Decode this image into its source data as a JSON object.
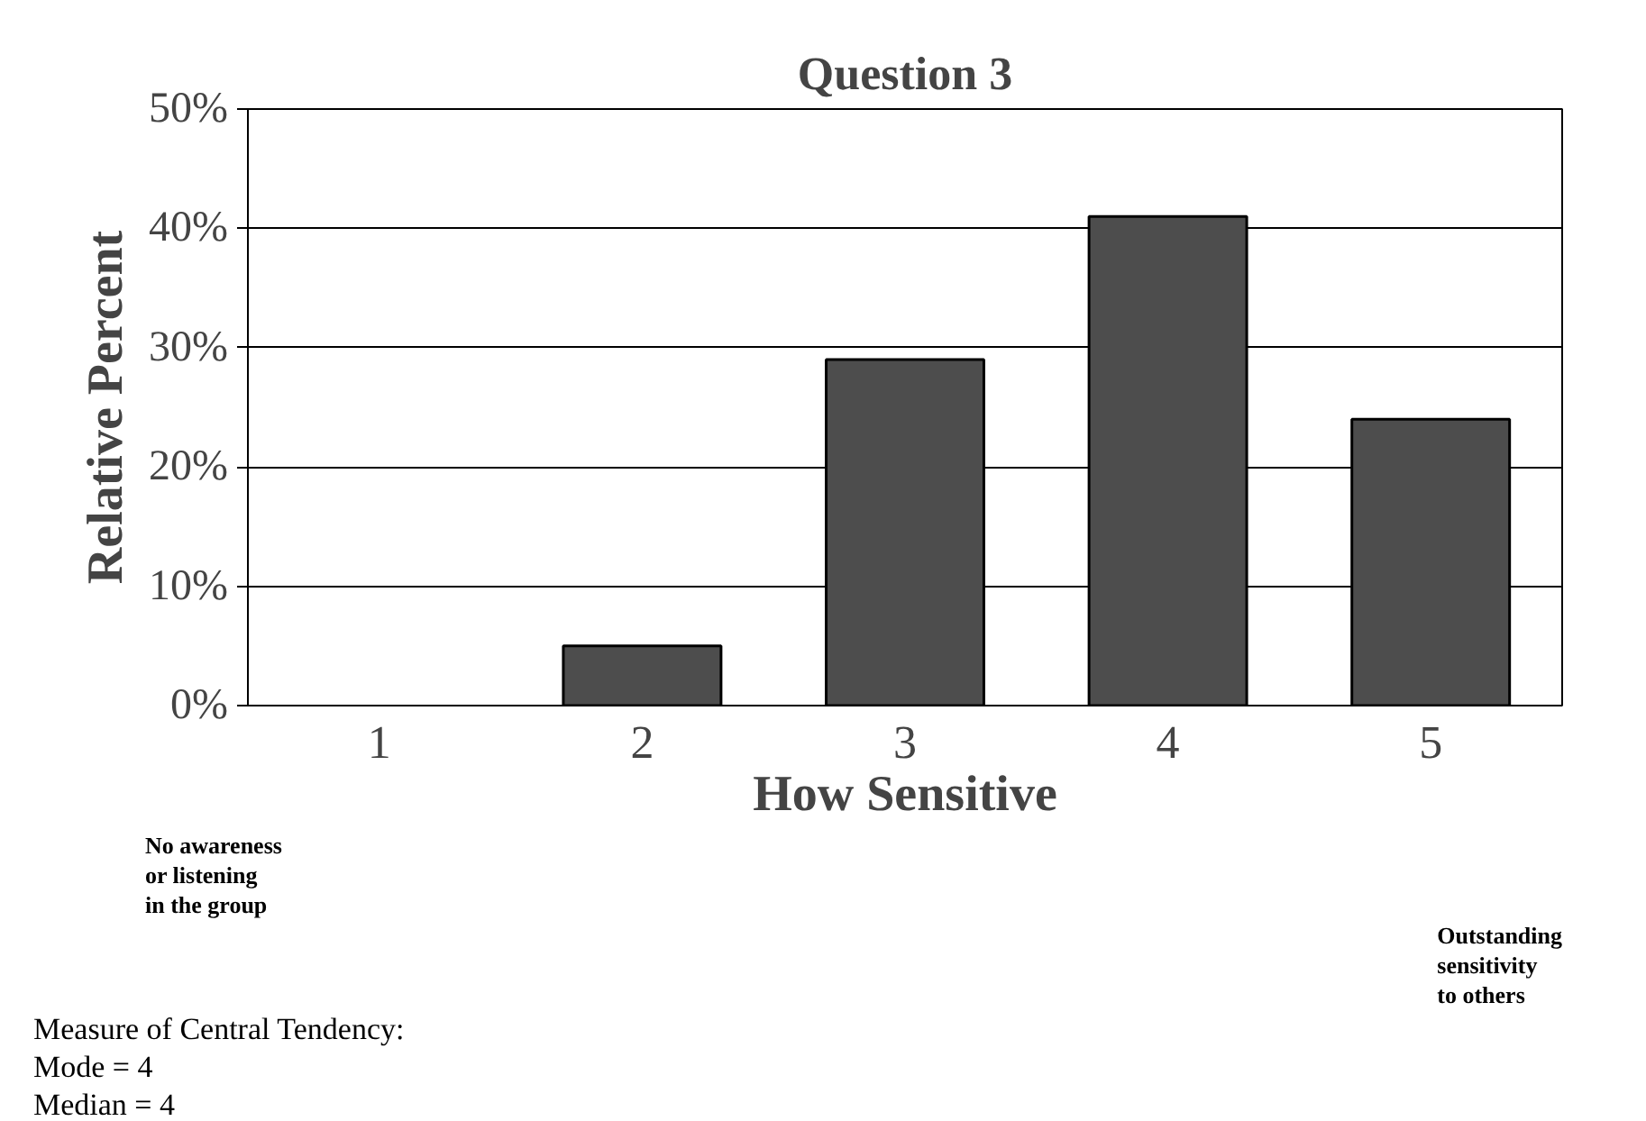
{
  "chart_data": {
    "type": "bar",
    "title": "Question 3",
    "xlabel": "How Sensitive",
    "ylabel": "Relative Percent",
    "categories": [
      "1",
      "2",
      "3",
      "4",
      "5"
    ],
    "values": [
      0,
      5,
      29,
      41,
      24
    ],
    "color": "#4d4d4d",
    "ylim": [
      0,
      50
    ],
    "yticks": [
      {
        "value": 0,
        "label": "0%"
      },
      {
        "value": 10,
        "label": "10%"
      },
      {
        "value": 20,
        "label": "20%"
      },
      {
        "value": 30,
        "label": "30%"
      },
      {
        "value": 40,
        "label": "40%"
      },
      {
        "value": 50,
        "label": "50%"
      }
    ],
    "grid": "y",
    "annotations": [
      "No awareness\nor listening\nin the group",
      "Outstanding\nsensitivity\nto others",
      "Measure of Central Tendency:",
      "Mode = 4",
      "Median = 4"
    ]
  }
}
